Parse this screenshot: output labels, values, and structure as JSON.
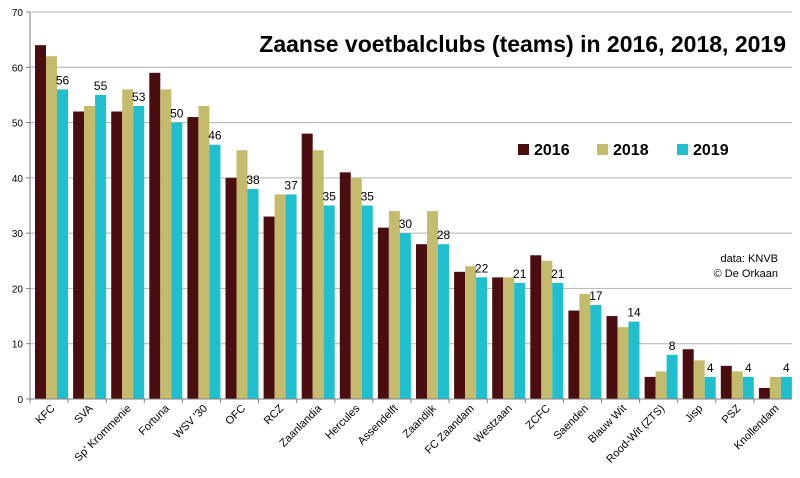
{
  "chart_data": {
    "type": "bar",
    "title": "Zaanse voetbalclubs (teams) in 2016, 2018, 2019",
    "source_note": [
      "data: KNVB",
      "© De Orkaan"
    ],
    "xlabel": "",
    "ylabel": "",
    "ylim": [
      0,
      70
    ],
    "yticks": [
      0,
      10,
      20,
      30,
      40,
      50,
      60,
      70
    ],
    "grid": true,
    "legend_position": "right-middle",
    "categories": [
      "KFC",
      "SVA",
      "Sp' Krommenie",
      "Fortuna",
      "WSV '30",
      "OFC",
      "RCZ",
      "Zaanlandia",
      "Hercules",
      "Assendelft",
      "Zaandijk",
      "FC Zaandam",
      "Westzaan",
      "ZCFC",
      "Saenden",
      "Blauw Wit",
      "Rood-Wit (ZTS)",
      "Jisp",
      "PSZ",
      "Knollendam"
    ],
    "series": [
      {
        "name": "2016",
        "color": "#4a0e10",
        "values": [
          64,
          52,
          52,
          59,
          51,
          40,
          33,
          48,
          41,
          31,
          28,
          23,
          22,
          26,
          16,
          15,
          4,
          9,
          6,
          2
        ]
      },
      {
        "name": "2018",
        "color": "#c4bc6c",
        "values": [
          62,
          53,
          56,
          56,
          53,
          45,
          37,
          45,
          40,
          34,
          34,
          24,
          22,
          25,
          19,
          13,
          5,
          7,
          5,
          4
        ]
      },
      {
        "name": "2019",
        "color": "#1fbfcf",
        "values": [
          56,
          55,
          53,
          50,
          46,
          38,
          37,
          35,
          35,
          30,
          28,
          22,
          21,
          21,
          17,
          14,
          8,
          4,
          4,
          4
        ]
      }
    ],
    "data_labels_series": "2019"
  }
}
